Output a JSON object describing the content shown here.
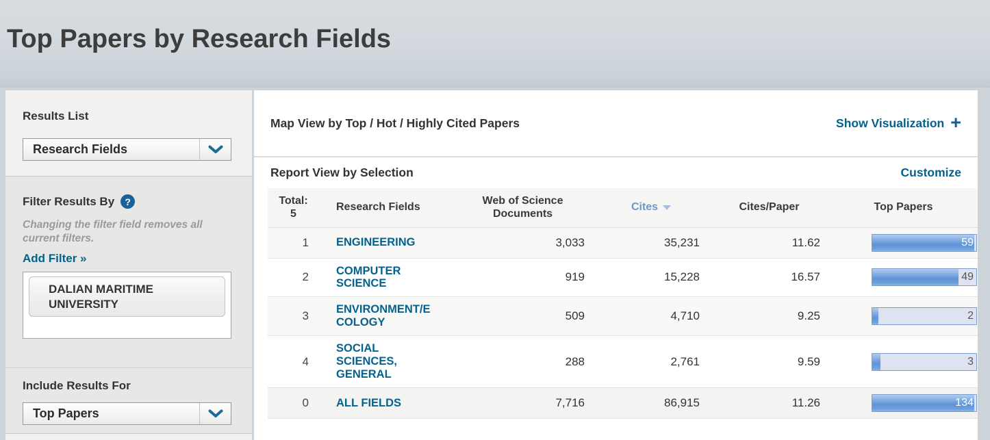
{
  "page": {
    "title": "Top Papers by Research Fields"
  },
  "colors": {
    "page_background": "#ccd3d9",
    "link_blue": "#04618e",
    "sorted_header_blue": "#6f97c3",
    "bar_fill_blue": "#5f93d6",
    "bar_track": "#dde3f0",
    "help_icon_blue": "#1b6298"
  },
  "sidebar": {
    "results_list": {
      "heading": "Results List",
      "selected_value": "Research Fields"
    },
    "filter": {
      "heading": "Filter Results By",
      "help_icon": "question-mark",
      "note": "Changing the filter field removes all current filters.",
      "add_filter_label": "Add Filter »",
      "selected_filter": "DALIAN MARITIME UNIVERSITY"
    },
    "include_results": {
      "heading": "Include Results For",
      "selected_value": "Top Papers"
    }
  },
  "main": {
    "map_view": {
      "title": "Map View by Top / Hot / Highly Cited Papers",
      "action_label": "Show Visualization",
      "action_icon": "plus",
      "plus_glyph": "+"
    },
    "report_view": {
      "title": "Report View by Selection",
      "action_label": "Customize"
    }
  },
  "table": {
    "header": {
      "total": "Total:\n5",
      "field": "Research Fields",
      "docs": "Web of Science\nDocuments",
      "cites": "Cites",
      "cites_per_paper": "Cites/Paper",
      "top_papers": "Top Papers"
    },
    "sorted_by": "Cites",
    "sort_direction": "descending",
    "rows": [
      {
        "rank": "1",
        "field": "ENGINEERING",
        "docs": "3,033",
        "cites": "35,231",
        "cites_per_paper": "11.62",
        "top_papers": "59",
        "bar_pct": 98,
        "label_on_fill": true
      },
      {
        "rank": "2",
        "field": "COMPUTER\nSCIENCE",
        "docs": "919",
        "cites": "15,228",
        "cites_per_paper": "16.57",
        "top_papers": "49",
        "bar_pct": 83,
        "label_on_fill": false
      },
      {
        "rank": "3",
        "field": "ENVIRONMENT/E\nCOLOGY",
        "docs": "509",
        "cites": "4,710",
        "cites_per_paper": "9.25",
        "top_papers": "2",
        "bar_pct": 6,
        "label_on_fill": false
      },
      {
        "rank": "4",
        "field": "SOCIAL\nSCIENCES,\nGENERAL",
        "docs": "288",
        "cites": "2,761",
        "cites_per_paper": "9.59",
        "top_papers": "3",
        "bar_pct": 8,
        "label_on_fill": false
      },
      {
        "rank": "0",
        "field": "ALL FIELDS",
        "docs": "7,716",
        "cites": "86,915",
        "cites_per_paper": "11.26",
        "top_papers": "134",
        "bar_pct": 98,
        "label_on_fill": true
      }
    ]
  }
}
